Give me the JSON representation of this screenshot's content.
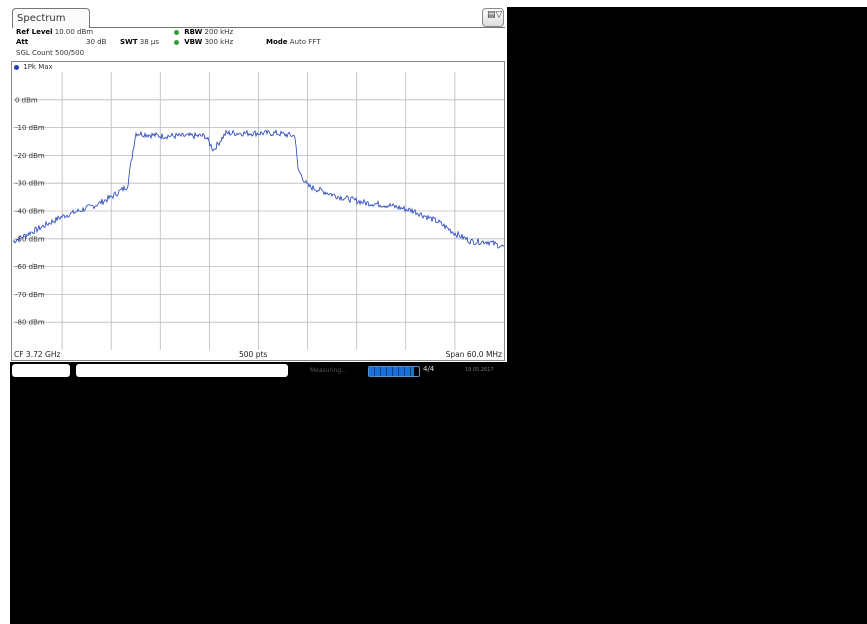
{
  "tab": {
    "title": "Spectrum"
  },
  "header": {
    "ref_level_label": "Ref Level",
    "ref_level_value": "10.00 dBm",
    "att_label": "Att",
    "att_value": "30 dB",
    "swt_label": "SWT",
    "swt_value": "38 µs",
    "rbw_label": "RBW",
    "rbw_value": "200 kHz",
    "vbw_label": "VBW",
    "vbw_value": "300 kHz",
    "mode_label": "Mode",
    "mode_value": "Auto FFT",
    "sgl_count": "SGL Count 500/500",
    "indicator_color": "#3a9a3a"
  },
  "trace": {
    "label": "1Pk Max",
    "color": "#1f3fbf"
  },
  "footer": {
    "center_freq": "CF 3.72 GHz",
    "points": "500 pts",
    "span": "Span 60.0 MHz"
  },
  "status": {
    "measuring": "Measuring...",
    "sweep_count": "4/4",
    "date": "19.05.2017",
    "progress_fraction": 0.9
  },
  "chart_data": {
    "type": "line",
    "ylim": [
      -90,
      10
    ],
    "yticks": [
      0,
      -10,
      -20,
      -30,
      -40,
      -50,
      -60,
      -70,
      -80
    ],
    "ytick_labels": [
      "0 dBm",
      "-10 dBm",
      "-20 dBm",
      "-30 dBm",
      "-40 dBm",
      "-50 dBm",
      "-60 dBm",
      "-70 dBm",
      "-80 dBm"
    ],
    "xlim": [
      3690,
      3750
    ],
    "x_divisions": 10,
    "grid": true,
    "series": [
      {
        "x": [
          3690.0,
          3692.0,
          3694.0,
          3696.0,
          3698.0,
          3700.0,
          3702.0,
          3704.0,
          3704.3,
          3705.0,
          3708.0,
          3711.0,
          3713.5,
          3714.5,
          3716.0,
          3719.0,
          3722.0,
          3724.5,
          3724.8,
          3726.0,
          3728.0,
          3730.0,
          3733.0,
          3736.0,
          3739.0,
          3742.0,
          3744.0,
          3746.0,
          3748.0,
          3750.0
        ],
        "y": [
          -51,
          -48,
          -45,
          -42,
          -40,
          -38,
          -35,
          -31,
          -25,
          -12,
          -13,
          -13,
          -13,
          -18,
          -12,
          -12,
          -12,
          -13,
          -25,
          -31,
          -33,
          -35,
          -37,
          -38,
          -40,
          -44,
          -48,
          -51,
          -51,
          -53
        ]
      }
    ]
  }
}
